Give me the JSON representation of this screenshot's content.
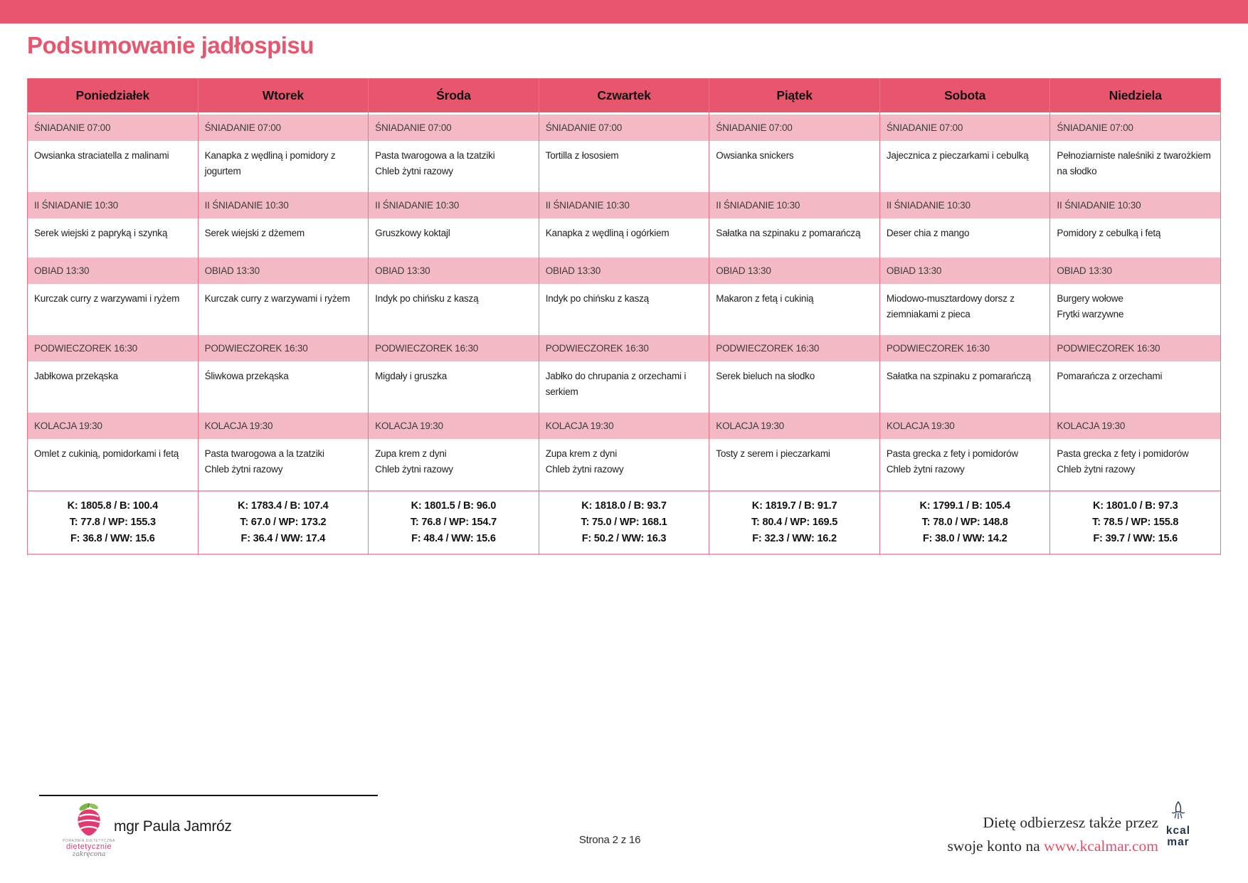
{
  "title": "Podsumowanie jadłospisu",
  "colors": {
    "accent": "#e8566e",
    "band_pink": "#f3b9c5",
    "border_pink": "#ee7288",
    "summary_border": "#efa5b3",
    "link": "#e0506b",
    "kcalmar_navy": "#22364b"
  },
  "table": {
    "days": [
      {
        "name": "Poniedziałek",
        "meals": [
          {
            "header": "ŚNIADANIE 07:00",
            "items": [
              "Owsianka straciatella z malinami"
            ]
          },
          {
            "header": "II ŚNIADANIE 10:30",
            "items": [
              "Serek wiejski z papryką i szynką"
            ]
          },
          {
            "header": "OBIAD 13:30",
            "items": [
              "Kurczak curry z warzywami i ryżem"
            ]
          },
          {
            "header": "PODWIECZOREK 16:30",
            "items": [
              "Jabłkowa przekąska"
            ]
          },
          {
            "header": "KOLACJA 19:30",
            "items": [
              "Omlet z cukinią, pomidorkami i fetą"
            ]
          }
        ],
        "summary": [
          "K: 1805.8 / B: 100.4",
          "T: 77.8 / WP: 155.3",
          "F: 36.8 / WW: 15.6"
        ]
      },
      {
        "name": "Wtorek",
        "meals": [
          {
            "header": "ŚNIADANIE 07:00",
            "items": [
              "Kanapka z wędliną i pomidory z jogurtem"
            ]
          },
          {
            "header": "II ŚNIADANIE 10:30",
            "items": [
              "Serek wiejski z dżemem"
            ]
          },
          {
            "header": "OBIAD 13:30",
            "items": [
              "Kurczak curry z warzywami i ryżem"
            ]
          },
          {
            "header": "PODWIECZOREK 16:30",
            "items": [
              "Śliwkowa przekąska"
            ]
          },
          {
            "header": "KOLACJA 19:30",
            "items": [
              "Pasta twarogowa a la tzatziki",
              "Chleb żytni razowy"
            ]
          }
        ],
        "summary": [
          "K: 1783.4 / B: 107.4",
          "T: 67.0 / WP: 173.2",
          "F: 36.4 / WW: 17.4"
        ]
      },
      {
        "name": "Środa",
        "meals": [
          {
            "header": "ŚNIADANIE 07:00",
            "items": [
              "Pasta twarogowa a la tzatziki",
              "Chleb żytni razowy"
            ]
          },
          {
            "header": "II ŚNIADANIE 10:30",
            "items": [
              "Gruszkowy koktajl"
            ]
          },
          {
            "header": "OBIAD 13:30",
            "items": [
              "Indyk po chińsku z kaszą"
            ]
          },
          {
            "header": "PODWIECZOREK 16:30",
            "items": [
              "Migdały i gruszka"
            ]
          },
          {
            "header": "KOLACJA 19:30",
            "items": [
              "Zupa krem z dyni",
              "Chleb żytni razowy"
            ]
          }
        ],
        "summary": [
          "K: 1801.5 / B: 96.0",
          "T: 76.8 / WP: 154.7",
          "F: 48.4 / WW: 15.6"
        ]
      },
      {
        "name": "Czwartek",
        "meals": [
          {
            "header": "ŚNIADANIE 07:00",
            "items": [
              "Tortilla z łososiem"
            ]
          },
          {
            "header": "II ŚNIADANIE 10:30",
            "items": [
              "Kanapka z wędliną i ogórkiem"
            ]
          },
          {
            "header": "OBIAD 13:30",
            "items": [
              "Indyk po chińsku z kaszą"
            ]
          },
          {
            "header": "PODWIECZOREK 16:30",
            "items": [
              "Jabłko do chrupania z orzechami i serkiem"
            ]
          },
          {
            "header": "KOLACJA 19:30",
            "items": [
              "Zupa krem z dyni",
              "Chleb żytni razowy"
            ]
          }
        ],
        "summary": [
          "K: 1818.0 / B: 93.7",
          "T: 75.0 / WP: 168.1",
          "F: 50.2 / WW: 16.3"
        ]
      },
      {
        "name": "Piątek",
        "meals": [
          {
            "header": "ŚNIADANIE 07:00",
            "items": [
              "Owsianka snickers"
            ]
          },
          {
            "header": "II ŚNIADANIE 10:30",
            "items": [
              "Sałatka na szpinaku z pomarańczą"
            ]
          },
          {
            "header": "OBIAD 13:30",
            "items": [
              "Makaron z fetą i cukinią"
            ]
          },
          {
            "header": "PODWIECZOREK 16:30",
            "items": [
              "Serek bieluch na słodko"
            ]
          },
          {
            "header": "KOLACJA 19:30",
            "items": [
              "Tosty z serem i pieczarkami"
            ]
          }
        ],
        "summary": [
          "K: 1819.7 / B: 91.7",
          "T: 80.4 / WP: 169.5",
          "F: 32.3 / WW: 16.2"
        ]
      },
      {
        "name": "Sobota",
        "meals": [
          {
            "header": "ŚNIADANIE 07:00",
            "items": [
              "Jajecznica z pieczarkami i cebulką"
            ]
          },
          {
            "header": "II ŚNIADANIE 10:30",
            "items": [
              "Deser chia z mango"
            ]
          },
          {
            "header": "OBIAD 13:30",
            "items": [
              "Miodowo-musztardowy dorsz z ziemniakami z pieca"
            ]
          },
          {
            "header": "PODWIECZOREK 16:30",
            "items": [
              "Sałatka na szpinaku z pomarańczą"
            ]
          },
          {
            "header": "KOLACJA 19:30",
            "items": [
              "Pasta grecka z fety i pomidorów",
              "Chleb żytni razowy"
            ]
          }
        ],
        "summary": [
          "K: 1799.1 / B: 105.4",
          "T: 78.0 / WP: 148.8",
          "F: 38.0 / WW: 14.2"
        ]
      },
      {
        "name": "Niedziela",
        "meals": [
          {
            "header": "ŚNIADANIE 07:00",
            "items": [
              "Pełnoziarniste naleśniki z twarożkiem na słodko"
            ]
          },
          {
            "header": "II ŚNIADANIE 10:30",
            "items": [
              "Pomidory z cebulką i fetą"
            ]
          },
          {
            "header": "OBIAD 13:30",
            "items": [
              "Burgery wołowe",
              "Frytki warzywne"
            ]
          },
          {
            "header": "PODWIECZOREK 16:30",
            "items": [
              "Pomarańcza z orzechami"
            ]
          },
          {
            "header": "KOLACJA 19:30",
            "items": [
              "Pasta grecka z fety i pomidorów",
              "Chleb żytni razowy"
            ]
          }
        ],
        "summary": [
          "K: 1801.0 / B: 97.3",
          "T: 78.5 / WP: 155.8",
          "F: 39.7 / WW: 15.6"
        ]
      }
    ]
  },
  "footer": {
    "dietitian": "mgr Paula Jamróz",
    "page_info": "Strona 2 z 16",
    "delivery_line1": "Dietę odbierzesz także przez",
    "delivery_line2_prefix": "swoje konto na ",
    "delivery_link": "www.kcalmar.com",
    "kcalmar_top": "kcal",
    "kcalmar_bottom": "mar",
    "clinic_tagline": "PORADNIA DIETETYCZNA",
    "clinic_name": "dietetycznie",
    "clinic_name2": "zakręcona"
  }
}
